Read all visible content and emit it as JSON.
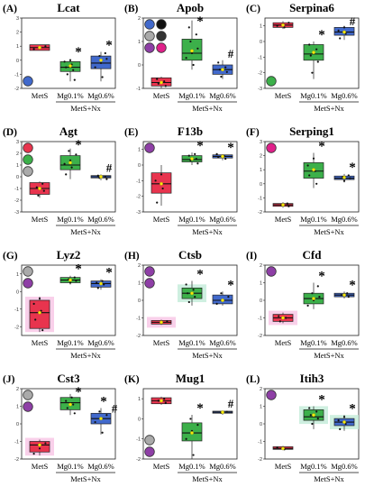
{
  "chart_data": [
    {
      "type": "box",
      "panel": "(A)",
      "title": "Lcat",
      "xlabel": "MetS+Nx",
      "categories": [
        "MetS",
        "Mg0.1%",
        "Mg0.6%"
      ],
      "ylim": [
        -2,
        3
      ],
      "yticks": [
        -2,
        -1,
        0,
        1,
        2,
        3
      ],
      "boxes": [
        {
          "name": "MetS",
          "min": 0.7,
          "q1": 0.7,
          "median": 0.9,
          "q3": 1.1,
          "max": 1.1,
          "mean": 0.9,
          "points": [
            0.8,
            0.9,
            1.0
          ],
          "color": "#e8344e",
          "shade": "",
          "mark": ""
        },
        {
          "name": "Mg0.1%",
          "min": -1.5,
          "q1": -0.8,
          "median": -0.5,
          "q3": -0.1,
          "max": 0.1,
          "mean": -0.4,
          "points": [
            -1.4,
            -1.0,
            -0.7,
            -0.5,
            -0.3,
            -0.1,
            0.0
          ],
          "color": "#3cb04a",
          "shade": "",
          "mark": "*"
        },
        {
          "name": "Mg0.6%",
          "min": -1.5,
          "q1": -0.6,
          "median": -0.2,
          "q3": 0.3,
          "max": 0.6,
          "mean": 0.0,
          "points": [
            -1.2,
            -0.5,
            -0.2,
            0.1,
            0.3,
            0.5
          ],
          "color": "#4169cc",
          "shade": "",
          "mark": "*"
        }
      ],
      "legend_icons": [
        "#4169cc"
      ],
      "legend_pos": "bottom-left"
    },
    {
      "type": "box",
      "panel": "(B)",
      "title": "Apob",
      "xlabel": "MetS+Nx",
      "categories": [
        "MetS",
        "Mg0.1%",
        "Mg0.6%"
      ],
      "ylim": [
        -1,
        2
      ],
      "yticks": [
        -1,
        0,
        1,
        2
      ],
      "boxes": [
        {
          "name": "MetS",
          "min": -1.0,
          "q1": -0.9,
          "median": -0.75,
          "q3": -0.55,
          "max": -0.5,
          "mean": -0.75,
          "points": [
            -0.9,
            -0.8,
            -0.7,
            -0.6
          ],
          "color": "#e8344e",
          "shade": "",
          "mark": ""
        },
        {
          "name": "Mg0.1%",
          "min": -0.2,
          "q1": 0.2,
          "median": 0.5,
          "q3": 1.1,
          "max": 1.9,
          "mean": 0.6,
          "points": [
            0.0,
            0.3,
            0.5,
            0.7,
            1.0,
            1.3,
            1.6
          ],
          "color": "#3cb04a",
          "shade": "",
          "mark": "*"
        },
        {
          "name": "Mg0.6%",
          "min": -0.6,
          "q1": -0.4,
          "median": -0.2,
          "q3": 0.0,
          "max": 0.2,
          "mean": -0.2,
          "points": [
            -0.5,
            -0.3,
            -0.2,
            -0.1,
            0.1
          ],
          "color": "#4169cc",
          "shade": "",
          "mark": "#"
        }
      ],
      "legend_icons": [
        "#4169cc",
        "#111111",
        "#aaaaaa",
        "#333333",
        "#8e3fa6",
        "#e0208a"
      ],
      "legend_pos": "top-left"
    },
    {
      "type": "box",
      "panel": "(C)",
      "title": "Serpina6",
      "xlabel": "MetS+Nx",
      "categories": [
        "MetS",
        "Mg0.1%",
        "Mg0.6%"
      ],
      "ylim": [
        -3,
        1.5
      ],
      "yticks": [
        -3,
        -2,
        -1,
        0,
        1
      ],
      "boxes": [
        {
          "name": "MetS",
          "min": 0.8,
          "q1": 0.9,
          "median": 1.05,
          "q3": 1.2,
          "max": 1.3,
          "mean": 1.05,
          "points": [
            0.9,
            1.0,
            1.1,
            1.2
          ],
          "color": "#e8344e",
          "shade": "",
          "mark": ""
        },
        {
          "name": "Mg0.1%",
          "min": -2.4,
          "q1": -1.2,
          "median": -0.8,
          "q3": -0.2,
          "max": 0.0,
          "mean": -0.7,
          "points": [
            -2.0,
            -1.3,
            -0.9,
            -0.5,
            -0.2
          ],
          "color": "#3cb04a",
          "shade": "",
          "mark": "*"
        },
        {
          "name": "Mg0.6%",
          "min": 0.1,
          "q1": 0.4,
          "median": 0.6,
          "q3": 0.9,
          "max": 1.0,
          "mean": 0.6,
          "points": [
            0.2,
            0.5,
            0.7,
            0.9
          ],
          "color": "#4169cc",
          "shade": "",
          "mark": "#"
        }
      ],
      "legend_icons": [
        "#3cb04a"
      ],
      "legend_pos": "bottom-left"
    },
    {
      "type": "box",
      "panel": "(D)",
      "title": "Agt",
      "xlabel": "MetS+Nx",
      "categories": [
        "MetS",
        "Mg0.1%",
        "Mg0.6%"
      ],
      "ylim": [
        -3,
        3
      ],
      "yticks": [
        -3,
        -2,
        -1,
        0,
        1,
        2,
        3
      ],
      "boxes": [
        {
          "name": "MetS",
          "min": -1.8,
          "q1": -1.5,
          "median": -1.0,
          "q3": -0.5,
          "max": -0.4,
          "mean": -1.0,
          "points": [
            -1.6,
            -1.2,
            -0.9,
            -0.6
          ],
          "color": "#e8344e",
          "shade": "",
          "mark": ""
        },
        {
          "name": "Mg0.1%",
          "min": -0.2,
          "q1": 0.6,
          "median": 1.0,
          "q3": 1.8,
          "max": 2.4,
          "mean": 1.2,
          "points": [
            0.2,
            0.8,
            1.1,
            1.4,
            1.9,
            2.2
          ],
          "color": "#3cb04a",
          "shade": "",
          "mark": "*"
        },
        {
          "name": "Mg0.6%",
          "min": -0.3,
          "q1": -0.1,
          "median": 0.0,
          "q3": 0.1,
          "max": 0.2,
          "mean": 0.0,
          "points": [
            -0.2,
            -0.1,
            0.0,
            0.1
          ],
          "color": "#4169cc",
          "shade": "",
          "mark": "#"
        }
      ],
      "legend_icons": [
        "#e8344e",
        "#3cb04a",
        "#aaaaaa"
      ],
      "legend_pos": "top-left"
    },
    {
      "type": "box",
      "panel": "(E)",
      "title": "F13b",
      "xlabel": "MetS+Nx",
      "categories": [
        "MetS",
        "Mg0.1%",
        "Mg0.6%"
      ],
      "ylim": [
        -3,
        1.5
      ],
      "yticks": [
        -3,
        -2,
        -1,
        0,
        1
      ],
      "boxes": [
        {
          "name": "MetS",
          "min": -2.6,
          "q1": -1.8,
          "median": -1.2,
          "q3": -0.5,
          "max": 0.0,
          "mean": -1.2,
          "points": [
            -2.4,
            -1.5,
            -1.0,
            -0.6
          ],
          "color": "#e8344e",
          "shade": "",
          "mark": ""
        },
        {
          "name": "Mg0.1%",
          "min": 0.0,
          "q1": 0.2,
          "median": 0.35,
          "q3": 0.6,
          "max": 0.8,
          "mean": 0.4,
          "points": [
            0.1,
            0.3,
            0.4,
            0.6,
            0.7
          ],
          "color": "#3cb04a",
          "shade": "",
          "mark": "*"
        },
        {
          "name": "Mg0.6%",
          "min": 0.3,
          "q1": 0.45,
          "median": 0.55,
          "q3": 0.65,
          "max": 0.7,
          "mean": 0.55,
          "points": [
            0.4,
            0.5,
            0.6,
            0.7
          ],
          "color": "#4169cc",
          "shade": "",
          "mark": "*"
        }
      ],
      "legend_icons": [
        "#8e3fa6"
      ],
      "legend_pos": "top-left"
    },
    {
      "type": "box",
      "panel": "(F)",
      "title": "Serping1",
      "xlabel": "MetS+Nx",
      "categories": [
        "MetS",
        "Mg0.1%",
        "Mg0.6%"
      ],
      "ylim": [
        -2,
        3
      ],
      "yticks": [
        -2,
        -1,
        0,
        1,
        2,
        3
      ],
      "boxes": [
        {
          "name": "MetS",
          "min": -1.7,
          "q1": -1.6,
          "median": -1.5,
          "q3": -1.4,
          "max": -1.3,
          "mean": -1.5,
          "points": [
            -1.6,
            -1.5,
            -1.4
          ],
          "color": "#e8344e",
          "shade": "",
          "mark": ""
        },
        {
          "name": "Mg0.1%",
          "min": -0.3,
          "q1": 0.4,
          "median": 0.9,
          "q3": 1.5,
          "max": 2.2,
          "mean": 1.0,
          "points": [
            0.0,
            0.6,
            0.9,
            1.3,
            1.8
          ],
          "color": "#3cb04a",
          "shade": "",
          "mark": "*"
        },
        {
          "name": "Mg0.6%",
          "min": 0.1,
          "q1": 0.3,
          "median": 0.4,
          "q3": 0.55,
          "max": 0.7,
          "mean": 0.45,
          "points": [
            0.2,
            0.4,
            0.5,
            0.6
          ],
          "color": "#4169cc",
          "shade": "",
          "mark": "*"
        }
      ],
      "legend_icons": [
        "#e0208a"
      ],
      "legend_pos": "top-left"
    },
    {
      "type": "box",
      "panel": "(G)",
      "title": "Lyz2",
      "xlabel": "MetS+Nx",
      "categories": [
        "MetS",
        "Mg0.1%",
        "Mg0.6%"
      ],
      "ylim": [
        -2.5,
        1.5
      ],
      "yticks": [
        -2,
        -1,
        0,
        1
      ],
      "boxes": [
        {
          "name": "MetS",
          "min": -2.3,
          "q1": -2.1,
          "median": -1.2,
          "q3": -0.5,
          "max": -0.3,
          "mean": -1.2,
          "points": [
            -2.2,
            -1.6,
            -1.1,
            -0.7,
            -0.4
          ],
          "color": "#e8344e",
          "shade": "#f8c8e6",
          "mark": ""
        },
        {
          "name": "Mg0.1%",
          "min": 0.4,
          "q1": 0.5,
          "median": 0.65,
          "q3": 0.8,
          "max": 0.9,
          "mean": 0.65,
          "points": [
            0.5,
            0.6,
            0.7,
            0.8
          ],
          "color": "#3cb04a",
          "shade": "",
          "mark": "*"
        },
        {
          "name": "Mg0.6%",
          "min": 0.1,
          "q1": 0.25,
          "median": 0.45,
          "q3": 0.6,
          "max": 0.7,
          "mean": 0.45,
          "points": [
            0.2,
            0.4,
            0.5,
            0.6
          ],
          "color": "#4169cc",
          "shade": "",
          "mark": "*"
        }
      ],
      "legend_icons": [
        "#aaaaaa",
        "#8e3fa6"
      ],
      "legend_pos": "top-left"
    },
    {
      "type": "box",
      "panel": "(H)",
      "title": "Ctsb",
      "xlabel": "MetS+Nx",
      "categories": [
        "MetS",
        "Mg0.1%",
        "Mg0.6%"
      ],
      "ylim": [
        -2,
        2
      ],
      "yticks": [
        -2,
        -1,
        0,
        1,
        2
      ],
      "boxes": [
        {
          "name": "MetS",
          "min": -1.4,
          "q1": -1.35,
          "median": -1.25,
          "q3": -1.15,
          "max": -1.1,
          "mean": -1.25,
          "points": [
            -1.3,
            -1.2
          ],
          "color": "#e8344e",
          "shade": "#f8c8e6",
          "mark": ""
        },
        {
          "name": "Mg0.1%",
          "min": -0.3,
          "q1": 0.1,
          "median": 0.4,
          "q3": 0.7,
          "max": 1.1,
          "mean": 0.4,
          "points": [
            -0.1,
            0.2,
            0.4,
            0.6,
            0.9
          ],
          "color": "#3cb04a",
          "shade": "#c6ecdb",
          "mark": "*"
        },
        {
          "name": "Mg0.6%",
          "min": -0.3,
          "q1": -0.2,
          "median": 0.0,
          "q3": 0.3,
          "max": 0.5,
          "mean": 0.0,
          "points": [
            -0.2,
            0.0,
            0.2,
            0.4
          ],
          "color": "#4169cc",
          "shade": "",
          "mark": "*"
        }
      ],
      "legend_icons": [
        "#8e3fa6",
        "#8e3fa6"
      ],
      "legend_pos": "top-left"
    },
    {
      "type": "box",
      "panel": "(I)",
      "title": "Cfd",
      "xlabel": "MetS+Nx",
      "categories": [
        "MetS",
        "Mg0.1%",
        "Mg0.6%"
      ],
      "ylim": [
        -2,
        2
      ],
      "yticks": [
        -2,
        -1,
        0,
        1,
        2
      ],
      "boxes": [
        {
          "name": "MetS",
          "min": -1.3,
          "q1": -1.2,
          "median": -1.0,
          "q3": -0.8,
          "max": -0.7,
          "mean": -1.0,
          "points": [
            -1.2,
            -1.0,
            -0.9
          ],
          "color": "#e8344e",
          "shade": "#f8c8e6",
          "mark": ""
        },
        {
          "name": "Mg0.1%",
          "min": -0.5,
          "q1": -0.2,
          "median": 0.1,
          "q3": 0.4,
          "max": 1.0,
          "mean": 0.1,
          "points": [
            -0.3,
            0.0,
            0.2,
            0.4,
            0.8
          ],
          "color": "#3cb04a",
          "shade": "",
          "mark": "*"
        },
        {
          "name": "Mg0.6%",
          "min": 0.1,
          "q1": 0.2,
          "median": 0.3,
          "q3": 0.4,
          "max": 0.5,
          "mean": 0.3,
          "points": [
            0.2,
            0.3,
            0.4
          ],
          "color": "#4169cc",
          "shade": "",
          "mark": "*"
        }
      ],
      "legend_icons": [
        "#8e3fa6"
      ],
      "legend_pos": "top-left"
    },
    {
      "type": "box",
      "panel": "(J)",
      "title": "Cst3",
      "xlabel": "MetS+Nx",
      "categories": [
        "MetS",
        "Mg0.1%",
        "Mg0.6%"
      ],
      "ylim": [
        -2,
        2
      ],
      "yticks": [
        -2,
        -1,
        0,
        1,
        2
      ],
      "boxes": [
        {
          "name": "MetS",
          "min": -1.8,
          "q1": -1.6,
          "median": -1.2,
          "q3": -1.0,
          "max": -0.9,
          "mean": -1.2,
          "points": [
            -1.7,
            -1.4,
            -1.1
          ],
          "color": "#e8344e",
          "shade": "#f8c8e6",
          "mark": ""
        },
        {
          "name": "Mg0.1%",
          "min": 0.5,
          "q1": 0.8,
          "median": 1.2,
          "q3": 1.5,
          "max": 1.7,
          "mean": 1.1,
          "points": [
            0.6,
            0.9,
            1.1,
            1.3,
            1.5
          ],
          "color": "#3cb04a",
          "shade": "",
          "mark": "*"
        },
        {
          "name": "Mg0.6%",
          "min": -0.6,
          "q1": 0.0,
          "median": 0.3,
          "q3": 0.6,
          "max": 0.9,
          "mean": 0.3,
          "points": [
            -0.5,
            0.1,
            0.3,
            0.5,
            0.7
          ],
          "color": "#4169cc",
          "shade": "",
          "mark": "*#"
        }
      ],
      "legend_icons": [
        "#aaaaaa",
        "#8e3fa6"
      ],
      "legend_pos": "top-left"
    },
    {
      "type": "box",
      "panel": "(K)",
      "title": "Mug1",
      "xlabel": "MetS+Nx",
      "categories": [
        "MetS",
        "Mg0.1%",
        "Mg0.6%"
      ],
      "ylim": [
        -2,
        1.5
      ],
      "yticks": [
        -2,
        -1,
        0,
        1
      ],
      "boxes": [
        {
          "name": "MetS",
          "min": 0.7,
          "q1": 0.75,
          "median": 0.9,
          "q3": 1.05,
          "max": 1.1,
          "mean": 0.9,
          "points": [
            0.8,
            0.9,
            1.0
          ],
          "color": "#e8344e",
          "shade": "",
          "mark": ""
        },
        {
          "name": "Mg0.1%",
          "min": -2.0,
          "q1": -1.1,
          "median": -0.7,
          "q3": -0.2,
          "max": 0.2,
          "mean": -0.7,
          "points": [
            -1.8,
            -1.0,
            -0.6,
            -0.3,
            0.0
          ],
          "color": "#3cb04a",
          "shade": "",
          "mark": "*"
        },
        {
          "name": "Mg0.6%",
          "min": 0.2,
          "q1": 0.28,
          "median": 0.33,
          "q3": 0.38,
          "max": 0.42,
          "mean": 0.33,
          "points": [
            0.3,
            0.35
          ],
          "color": "#4169cc",
          "shade": "",
          "mark": "#"
        }
      ],
      "legend_icons": [
        "#aaaaaa",
        "#8e3fa6"
      ],
      "legend_pos": "bottom-left"
    },
    {
      "type": "box",
      "panel": "(L)",
      "title": "Itih3",
      "xlabel": "MetS+Nx",
      "categories": [
        "MetS",
        "Mg0.1%",
        "Mg0.6%"
      ],
      "ylim": [
        -2,
        2
      ],
      "yticks": [
        -2,
        -1,
        0,
        1,
        2
      ],
      "boxes": [
        {
          "name": "MetS",
          "min": -1.5,
          "q1": -1.45,
          "median": -1.4,
          "q3": -1.3,
          "max": -1.25,
          "mean": -1.4,
          "points": [
            -1.45,
            -1.35
          ],
          "color": "#e8344e",
          "shade": "",
          "mark": ""
        },
        {
          "name": "Mg0.1%",
          "min": -0.3,
          "q1": 0.2,
          "median": 0.4,
          "q3": 0.8,
          "max": 1.0,
          "mean": 0.5,
          "points": [
            0.0,
            0.3,
            0.5,
            0.7,
            0.9
          ],
          "color": "#3cb04a",
          "shade": "#c6ecdb",
          "mark": "*"
        },
        {
          "name": "Mg0.6%",
          "min": -0.4,
          "q1": -0.1,
          "median": 0.1,
          "q3": 0.3,
          "max": 0.5,
          "mean": 0.1,
          "points": [
            -0.3,
            0.0,
            0.2,
            0.4
          ],
          "color": "#4169cc",
          "shade": "#c6ecdb",
          "mark": "*"
        }
      ],
      "legend_icons": [
        "#8e3fa6"
      ],
      "legend_pos": "top-left"
    }
  ]
}
